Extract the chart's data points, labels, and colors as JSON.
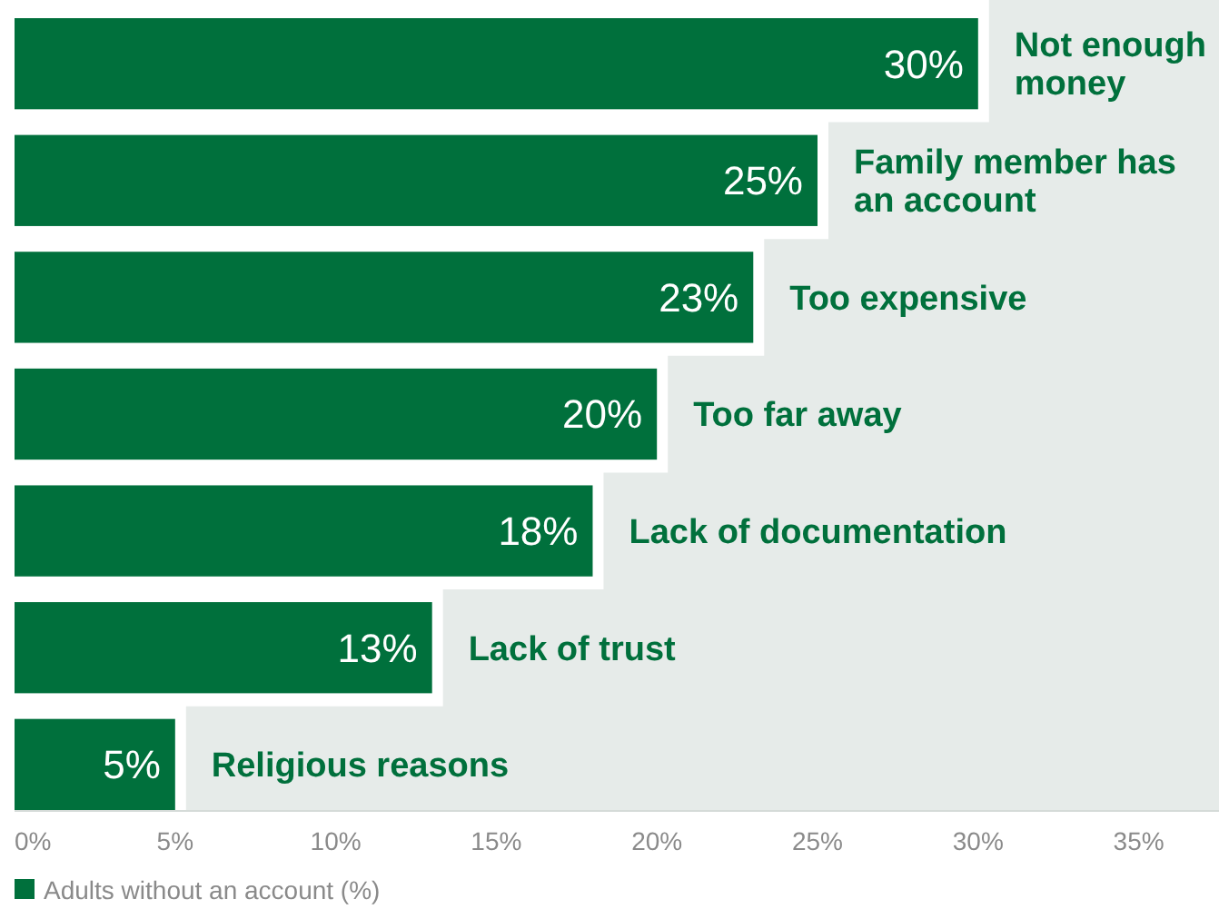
{
  "chart_data": {
    "type": "bar",
    "orientation": "horizontal",
    "categories": [
      "Not enough money",
      "Family member has an account",
      "Too expensive",
      "Too far away",
      "Lack of documentation",
      "Lack of trust",
      "Religious reasons"
    ],
    "series": [
      {
        "name": "Adults without an account (%)",
        "color": "#00703c",
        "values": [
          30,
          25,
          23,
          20,
          18,
          13,
          5
        ]
      }
    ],
    "value_labels": [
      "30%",
      "25%",
      "23%",
      "20%",
      "18%",
      "13%",
      "5%"
    ],
    "xlim": [
      0,
      37.5
    ],
    "xticks": [
      {
        "value": 0,
        "label": "0%"
      },
      {
        "value": 5,
        "label": "5%"
      },
      {
        "value": 10,
        "label": "10%"
      },
      {
        "value": 15,
        "label": "15%"
      },
      {
        "value": 20,
        "label": "20%"
      },
      {
        "value": 25,
        "label": "25%"
      },
      {
        "value": 30,
        "label": "30%"
      },
      {
        "value": 35,
        "label": "35%"
      }
    ],
    "grid": false,
    "legend": "bottom left"
  }
}
